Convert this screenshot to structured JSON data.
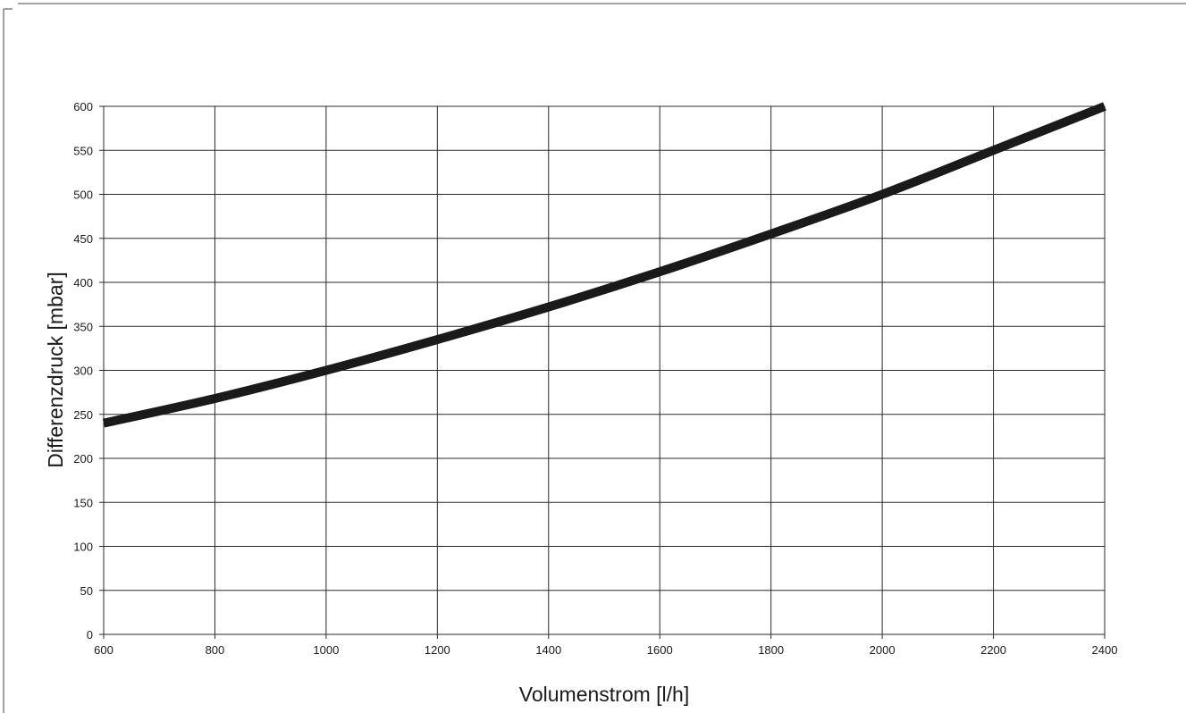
{
  "chart_data": {
    "type": "line",
    "title": "",
    "xlabel": "Volumenstrom [l/h]",
    "ylabel": "Differenzdruck [mbar]",
    "xlim": [
      600,
      2400
    ],
    "ylim": [
      0,
      600
    ],
    "x_ticks": [
      600,
      800,
      1000,
      1200,
      1400,
      1600,
      1800,
      2000,
      2200,
      2400
    ],
    "y_ticks": [
      0,
      50,
      100,
      150,
      200,
      250,
      300,
      350,
      400,
      450,
      500,
      550,
      600
    ],
    "grid": true,
    "series": [
      {
        "color": "#1a1a1a",
        "x": [
          600,
          800,
          1000,
          1200,
          1400,
          1600,
          1800,
          2000,
          2200,
          2400
        ],
        "y": [
          240,
          268,
          300,
          335,
          372,
          412,
          455,
          500,
          550,
          600
        ]
      }
    ]
  }
}
